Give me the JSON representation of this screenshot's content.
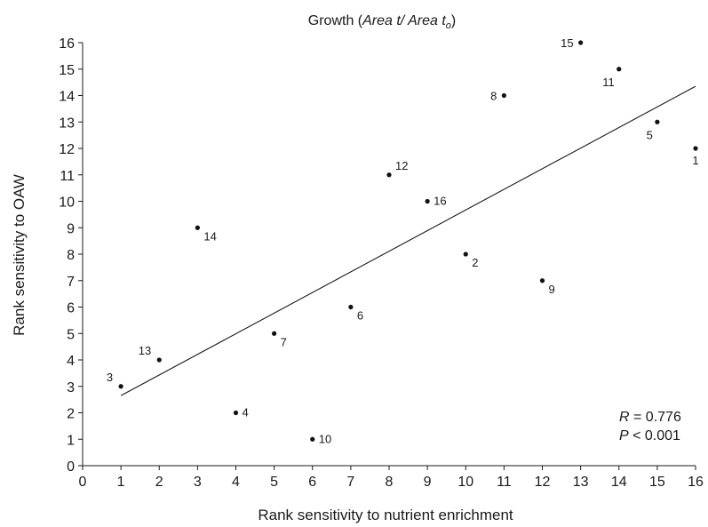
{
  "chart_data": {
    "type": "scatter",
    "title_prefix": "Growth (",
    "title_em1": "Area t/ Area t",
    "title_sub": "o",
    "title_suffix": ")",
    "xlabel": "Rank sensitivity to nutrient enrichment",
    "ylabel": "Rank sensitivity to OAW",
    "xlim": [
      0,
      16
    ],
    "ylim": [
      0,
      16
    ],
    "xticks": [
      0,
      1,
      2,
      3,
      4,
      5,
      6,
      7,
      8,
      9,
      10,
      11,
      12,
      13,
      14,
      15,
      16
    ],
    "yticks": [
      0,
      1,
      2,
      3,
      4,
      5,
      6,
      7,
      8,
      9,
      10,
      11,
      12,
      13,
      14,
      15,
      16
    ],
    "grid": false,
    "points": [
      {
        "label": "1",
        "x": 16,
        "y": 12,
        "pos": "below"
      },
      {
        "label": "2",
        "x": 10,
        "y": 8,
        "pos": "below-right"
      },
      {
        "label": "3",
        "x": 1,
        "y": 3,
        "pos": "above-left"
      },
      {
        "label": "4",
        "x": 4,
        "y": 2,
        "pos": "right"
      },
      {
        "label": "5",
        "x": 15,
        "y": 13,
        "pos": "below-left"
      },
      {
        "label": "6",
        "x": 7,
        "y": 6,
        "pos": "below-right"
      },
      {
        "label": "7",
        "x": 5,
        "y": 5,
        "pos": "below-right"
      },
      {
        "label": "8",
        "x": 11,
        "y": 14,
        "pos": "left"
      },
      {
        "label": "9",
        "x": 12,
        "y": 7,
        "pos": "below-right"
      },
      {
        "label": "10",
        "x": 6,
        "y": 1,
        "pos": "right"
      },
      {
        "label": "11",
        "x": 14,
        "y": 15,
        "pos": "below-left"
      },
      {
        "label": "12",
        "x": 8,
        "y": 11,
        "pos": "above-right"
      },
      {
        "label": "13",
        "x": 2,
        "y": 4,
        "pos": "above-left"
      },
      {
        "label": "14",
        "x": 3,
        "y": 9,
        "pos": "below-right"
      },
      {
        "label": "15",
        "x": 13,
        "y": 16,
        "pos": "left"
      },
      {
        "label": "16",
        "x": 9,
        "y": 10,
        "pos": "right"
      }
    ],
    "trendline": {
      "x0": 1,
      "y0": 2.65,
      "x1": 16,
      "y1": 14.35
    },
    "stats": {
      "r_symbol": "R",
      "r_value": " = 0.776",
      "p_symbol": "P",
      "p_value": " < 0.001"
    }
  }
}
